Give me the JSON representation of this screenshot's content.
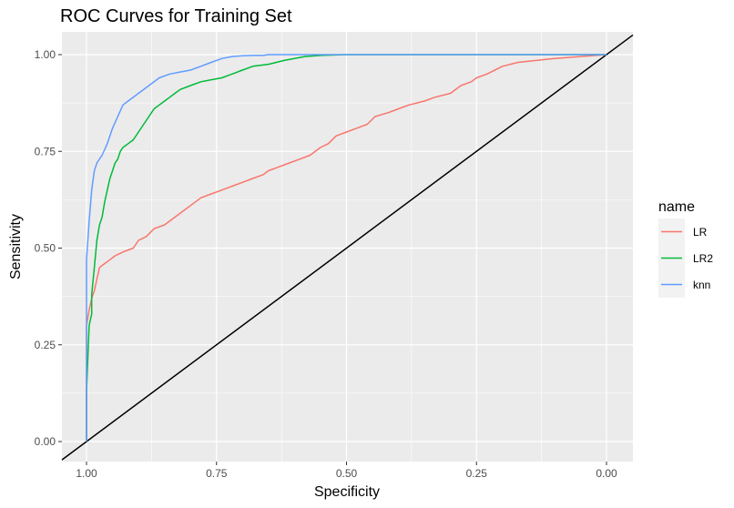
{
  "chart_data": {
    "type": "line",
    "title": "ROC Curves for Training Set",
    "xlabel": "Specificity",
    "ylabel": "Sensitivity",
    "x_reversed": true,
    "xlim": [
      1.0,
      0.0
    ],
    "ylim": [
      0.0,
      1.0
    ],
    "x_ticks": [
      {
        "value": 1.0,
        "label": "1.00"
      },
      {
        "value": 0.75,
        "label": "0.75"
      },
      {
        "value": 0.5,
        "label": "0.50"
      },
      {
        "value": 0.25,
        "label": "0.25"
      },
      {
        "value": 0.0,
        "label": "0.00"
      }
    ],
    "y_ticks": [
      {
        "value": 0.0,
        "label": "0.00"
      },
      {
        "value": 0.25,
        "label": "0.25"
      },
      {
        "value": 0.5,
        "label": "0.50"
      },
      {
        "value": 0.75,
        "label": "0.75"
      },
      {
        "value": 1.0,
        "label": "1.00"
      }
    ],
    "grid": true,
    "legend": {
      "title": "name",
      "placement": "right"
    },
    "reference_line": {
      "from": [
        1.0,
        0.0
      ],
      "to": [
        0.0,
        1.0
      ],
      "color": "#000000"
    },
    "series": [
      {
        "name": "LR",
        "color": "#F8766D",
        "points": [
          [
            1.0,
            0.0
          ],
          [
            1.0,
            0.3
          ],
          [
            0.995,
            0.34
          ],
          [
            0.99,
            0.37
          ],
          [
            0.985,
            0.39
          ],
          [
            0.98,
            0.42
          ],
          [
            0.975,
            0.45
          ],
          [
            0.965,
            0.46
          ],
          [
            0.955,
            0.47
          ],
          [
            0.945,
            0.48
          ],
          [
            0.93,
            0.49
          ],
          [
            0.91,
            0.5
          ],
          [
            0.9,
            0.52
          ],
          [
            0.885,
            0.53
          ],
          [
            0.87,
            0.55
          ],
          [
            0.85,
            0.56
          ],
          [
            0.83,
            0.58
          ],
          [
            0.8,
            0.61
          ],
          [
            0.78,
            0.63
          ],
          [
            0.76,
            0.64
          ],
          [
            0.74,
            0.65
          ],
          [
            0.72,
            0.66
          ],
          [
            0.7,
            0.67
          ],
          [
            0.68,
            0.68
          ],
          [
            0.66,
            0.69
          ],
          [
            0.65,
            0.7
          ],
          [
            0.63,
            0.71
          ],
          [
            0.61,
            0.72
          ],
          [
            0.59,
            0.73
          ],
          [
            0.57,
            0.74
          ],
          [
            0.55,
            0.76
          ],
          [
            0.535,
            0.77
          ],
          [
            0.52,
            0.79
          ],
          [
            0.5,
            0.8
          ],
          [
            0.48,
            0.81
          ],
          [
            0.46,
            0.82
          ],
          [
            0.445,
            0.84
          ],
          [
            0.42,
            0.85
          ],
          [
            0.4,
            0.86
          ],
          [
            0.38,
            0.87
          ],
          [
            0.35,
            0.88
          ],
          [
            0.33,
            0.89
          ],
          [
            0.3,
            0.9
          ],
          [
            0.28,
            0.92
          ],
          [
            0.26,
            0.93
          ],
          [
            0.25,
            0.94
          ],
          [
            0.23,
            0.95
          ],
          [
            0.2,
            0.97
          ],
          [
            0.17,
            0.98
          ],
          [
            0.1,
            0.99
          ],
          [
            0.05,
            0.995
          ],
          [
            0.02,
            0.998
          ],
          [
            0.0,
            1.0
          ]
        ]
      },
      {
        "name": "LR2",
        "color": "#00BA38",
        "points": [
          [
            1.0,
            0.0
          ],
          [
            1.0,
            0.13
          ],
          [
            0.995,
            0.3
          ],
          [
            0.99,
            0.33
          ],
          [
            0.99,
            0.38
          ],
          [
            0.985,
            0.45
          ],
          [
            0.98,
            0.52
          ],
          [
            0.975,
            0.56
          ],
          [
            0.97,
            0.58
          ],
          [
            0.965,
            0.62
          ],
          [
            0.96,
            0.65
          ],
          [
            0.955,
            0.68
          ],
          [
            0.95,
            0.7
          ],
          [
            0.945,
            0.72
          ],
          [
            0.94,
            0.73
          ],
          [
            0.935,
            0.75
          ],
          [
            0.93,
            0.76
          ],
          [
            0.92,
            0.77
          ],
          [
            0.91,
            0.78
          ],
          [
            0.9,
            0.8
          ],
          [
            0.89,
            0.82
          ],
          [
            0.88,
            0.84
          ],
          [
            0.87,
            0.86
          ],
          [
            0.86,
            0.87
          ],
          [
            0.85,
            0.88
          ],
          [
            0.84,
            0.89
          ],
          [
            0.83,
            0.9
          ],
          [
            0.82,
            0.91
          ],
          [
            0.8,
            0.92
          ],
          [
            0.78,
            0.93
          ],
          [
            0.76,
            0.935
          ],
          [
            0.74,
            0.94
          ],
          [
            0.72,
            0.95
          ],
          [
            0.7,
            0.96
          ],
          [
            0.68,
            0.97
          ],
          [
            0.65,
            0.975
          ],
          [
            0.62,
            0.985
          ],
          [
            0.6,
            0.99
          ],
          [
            0.58,
            0.995
          ],
          [
            0.55,
            0.998
          ],
          [
            0.5,
            1.0
          ],
          [
            0.4,
            1.0
          ],
          [
            0.2,
            1.0
          ],
          [
            0.0,
            1.0
          ]
        ]
      },
      {
        "name": "knn",
        "color": "#619CFF",
        "points": [
          [
            1.0,
            0.0
          ],
          [
            1.0,
            0.47
          ],
          [
            0.995,
            0.57
          ],
          [
            0.99,
            0.65
          ],
          [
            0.985,
            0.7
          ],
          [
            0.98,
            0.72
          ],
          [
            0.97,
            0.74
          ],
          [
            0.96,
            0.77
          ],
          [
            0.95,
            0.81
          ],
          [
            0.94,
            0.84
          ],
          [
            0.93,
            0.87
          ],
          [
            0.92,
            0.88
          ],
          [
            0.9,
            0.9
          ],
          [
            0.88,
            0.92
          ],
          [
            0.86,
            0.94
          ],
          [
            0.84,
            0.95
          ],
          [
            0.82,
            0.955
          ],
          [
            0.8,
            0.96
          ],
          [
            0.78,
            0.97
          ],
          [
            0.76,
            0.98
          ],
          [
            0.74,
            0.99
          ],
          [
            0.72,
            0.995
          ],
          [
            0.7,
            0.997
          ],
          [
            0.68,
            0.998
          ],
          [
            0.66,
            0.998
          ],
          [
            0.65,
            1.0
          ],
          [
            0.4,
            1.0
          ],
          [
            0.0,
            1.0
          ]
        ]
      }
    ]
  }
}
